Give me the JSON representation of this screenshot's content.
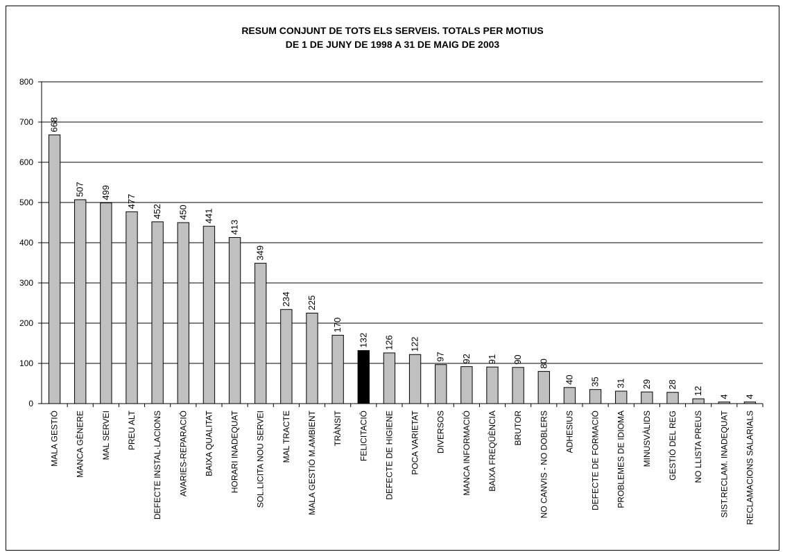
{
  "chart_data": {
    "type": "bar",
    "title": "RESUM CONJUNT DE TOTS ELS SERVEIS. TOTALS PER MOTIUS",
    "subtitle": "DE 1 DE JUNY DE 1998 A 31 DE MAIG DE 2003",
    "xlabel": "",
    "ylabel": "",
    "ylim": [
      0,
      800
    ],
    "yticks": [
      0,
      100,
      200,
      300,
      400,
      500,
      600,
      700,
      800
    ],
    "grid": true,
    "legend": "none",
    "colors": {
      "bar": "#c0c0c0",
      "highlight": "#000000",
      "outline": "#000000"
    },
    "highlight_index": 13,
    "categories": [
      "MALA GESTIÓ",
      "MANCA GÈNERE",
      "MAL SERVEI",
      "PREU ALT",
      "DEFECTE INSTAL·LACIONS",
      "AVARIES-REPARACIÓ",
      "BAIXA QUALITAT",
      "HORARI INADEQUAT",
      "SOL.LICITA NOU SERVEI",
      "MAL TRACTE",
      "MALA GESTIÓ M.AMBIENT",
      "TRÀNSIT",
      "FELICITACIÓ",
      "DEFECTE DE HIGIENE",
      "POCA VARIETAT",
      "DIVERSOS",
      "MANCA INFORMACIÓ",
      "BAIXA FREQÜÈNCIA",
      "BRUTOR",
      "NO CANVIS - NO DOBLERS",
      "ADHESIUS",
      "DEFECTE DE FORMACIÓ",
      "PROBLEMES DE IDIOMA",
      "MINUSVÀLIDS",
      "GESTIÓ DEL REG",
      "NO LLISTA PREUS",
      "SIST.RECLAM. INADEQUAT",
      "RECLAMACIONS SALARIALS"
    ],
    "values": [
      668,
      507,
      499,
      477,
      452,
      450,
      441,
      413,
      349,
      234,
      225,
      170,
      132,
      126,
      122,
      97,
      92,
      91,
      90,
      80,
      40,
      35,
      31,
      29,
      28,
      12,
      4,
      4
    ]
  }
}
